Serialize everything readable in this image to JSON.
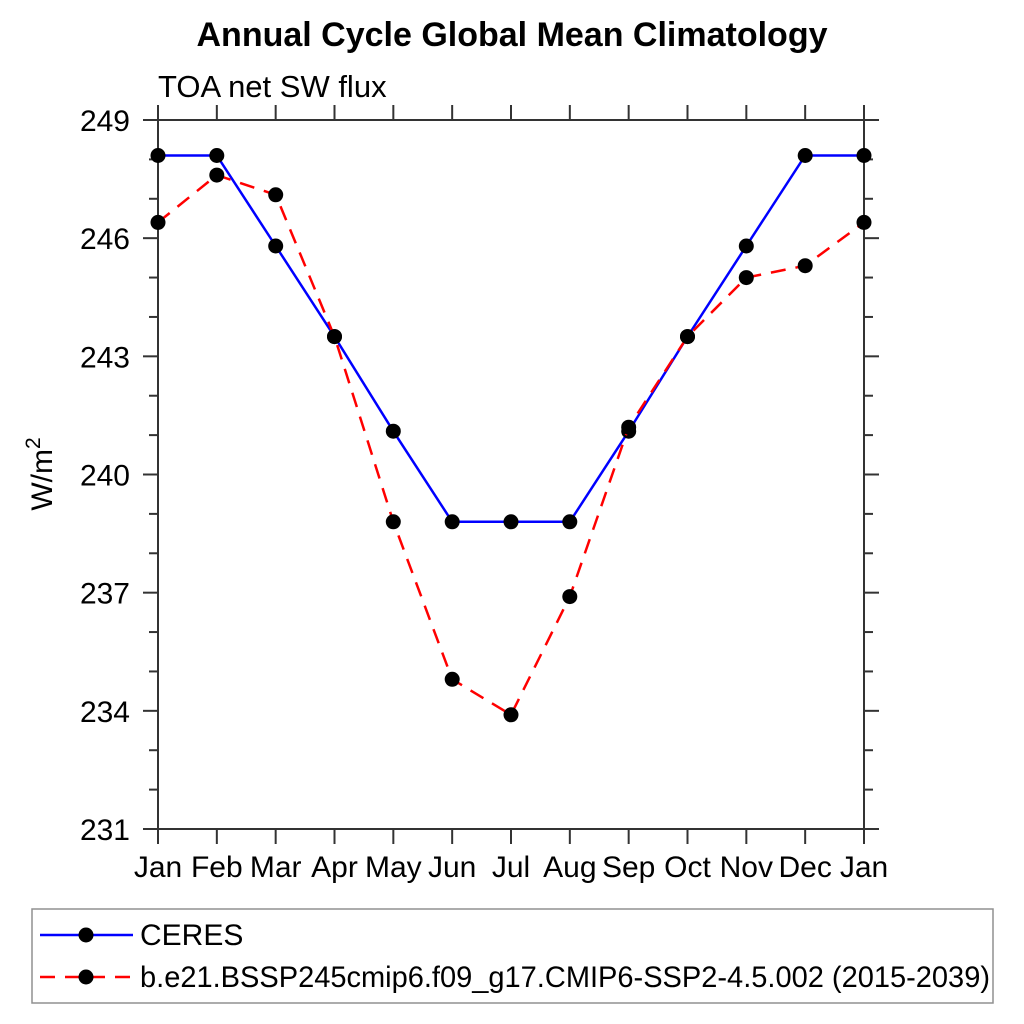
{
  "page_title": "Annual Cycle Global Mean Climatology",
  "chart_data": {
    "type": "line",
    "title": "Annual Cycle Global Mean Climatology",
    "subtitle": "TOA net SW flux",
    "ylabel": {
      "base": "W/m",
      "sup": "2"
    },
    "categories": [
      "Jan",
      "Feb",
      "Mar",
      "Apr",
      "May",
      "Jun",
      "Jul",
      "Aug",
      "Sep",
      "Oct",
      "Nov",
      "Dec",
      "Jan"
    ],
    "ylim": [
      231,
      249
    ],
    "yticks_labeled": [
      231,
      234,
      237,
      240,
      243,
      246,
      249
    ],
    "ytick_minor_step": 1,
    "grid": false,
    "legend_position": "bottom",
    "axis_color": "#333333",
    "legend_border_color": "#909090",
    "series": [
      {
        "name": "CERES",
        "color": "#0000ff",
        "line_style": "solid",
        "marker": "filled-circle",
        "marker_color": "#000000",
        "values": [
          248.1,
          248.1,
          245.8,
          243.5,
          241.1,
          238.8,
          238.8,
          238.8,
          241.1,
          243.5,
          245.8,
          248.1,
          248.1
        ]
      },
      {
        "name": "b.e21.BSSP245cmip6.f09_g17.CMIP6-SSP2-4.5.002 (2015-2039)",
        "color": "#ff0000",
        "line_style": "dashed",
        "marker": "filled-circle",
        "marker_color": "#000000",
        "values": [
          246.4,
          247.6,
          247.1,
          243.5,
          238.8,
          234.8,
          233.9,
          236.9,
          241.2,
          243.5,
          245.0,
          245.3,
          246.4
        ]
      }
    ]
  }
}
